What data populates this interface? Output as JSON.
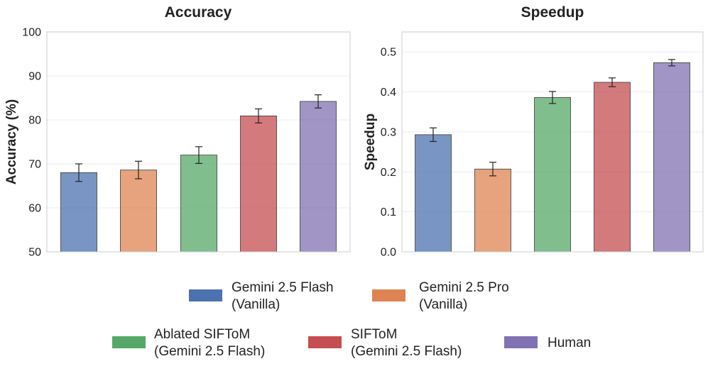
{
  "chart_data": [
    {
      "type": "bar",
      "title": "Accuracy",
      "xlabel": "",
      "ylabel": "Accuracy (%)",
      "ylim": [
        50,
        100
      ],
      "yticks": [
        "50",
        "60",
        "70",
        "80",
        "90",
        "100"
      ],
      "grid": true,
      "categories": [
        "Gemini 2.5 Flash (Vanilla)",
        "Gemini 2.5 Pro (Vanilla)",
        "Ablated SIFToM (Gemini 2.5 Flash)",
        "SIFToM (Gemini 2.5 Flash)",
        "Human"
      ],
      "values": [
        68.0,
        68.6,
        72.0,
        80.9,
        84.2
      ],
      "errors": [
        2.0,
        2.0,
        1.9,
        1.6,
        1.5
      ]
    },
    {
      "type": "bar",
      "title": "Speedup",
      "xlabel": "",
      "ylabel": "Speedup",
      "ylim": [
        0,
        0.55
      ],
      "yticks": [
        "0.0",
        "0.1",
        "0.2",
        "0.3",
        "0.4",
        "0.5"
      ],
      "grid": true,
      "categories": [
        "Gemini 2.5 Flash (Vanilla)",
        "Gemini 2.5 Pro (Vanilla)",
        "Ablated SIFToM (Gemini 2.5 Flash)",
        "SIFToM (Gemini 2.5 Flash)",
        "Human"
      ],
      "values": [
        0.293,
        0.207,
        0.386,
        0.424,
        0.473
      ],
      "errors": [
        0.017,
        0.017,
        0.015,
        0.011,
        0.008
      ]
    }
  ],
  "legend": {
    "position": "bottom",
    "items": [
      {
        "line1": "Gemini 2.5 Flash",
        "line2": "(Vanilla)",
        "color": "#4c72b0"
      },
      {
        "line1": "Gemini 2.5 Pro",
        "line2": "(Vanilla)",
        "color": "#dd8452"
      },
      {
        "line1": "Ablated SIFToM",
        "line2": "(Gemini 2.5 Flash)",
        "color": "#55a868"
      },
      {
        "line1": "SIFToM",
        "line2": "(Gemini 2.5 Flash)",
        "color": "#c44e52"
      },
      {
        "line1": "Human",
        "line2": "",
        "color": "#8172b3"
      }
    ]
  }
}
